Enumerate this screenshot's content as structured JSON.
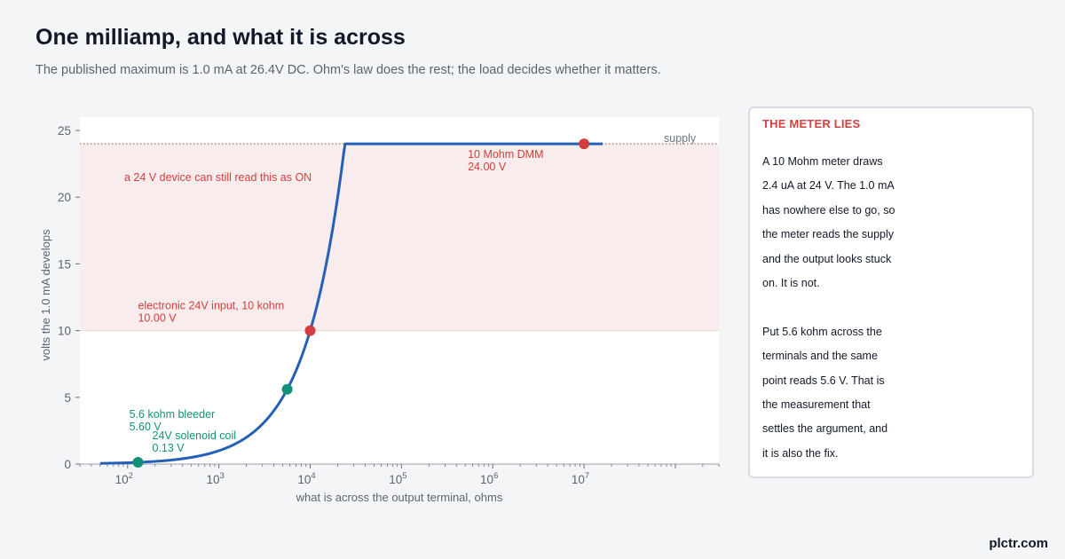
{
  "header": {
    "title": "One milliamp, and what it is across",
    "subtitle": "The published maximum is 1.0 mA at 26.4V DC. Ohm's law does the rest; the load decides whether it matters."
  },
  "chart_data": {
    "type": "line",
    "xlabel": "what is across the output terminal, ohms",
    "ylabel": "volts the 1.0 mA develops",
    "xscale": "log",
    "xlim": [
      30,
      300000000
    ],
    "ylim": [
      0,
      26
    ],
    "y_ticks": [
      0,
      5,
      10,
      15,
      20,
      25
    ],
    "x_ticks": [
      {
        "value": 100,
        "base": "10",
        "exp": "2"
      },
      {
        "value": 1000,
        "base": "10",
        "exp": "3"
      },
      {
        "value": 10000,
        "base": "10",
        "exp": "4"
      },
      {
        "value": 100000,
        "base": "10",
        "exp": "5"
      },
      {
        "value": 1000000,
        "base": "10",
        "exp": "6"
      },
      {
        "value": 10000000,
        "base": "10",
        "exp": "7"
      }
    ],
    "current_amps": 0.001,
    "supply_volts": 24,
    "curve_x_range": [
      50,
      16000000
    ],
    "on_band": {
      "from": 10,
      "to": 24,
      "label": "a 24 V device can still read this as ON"
    },
    "supply_line": {
      "value": 24,
      "label": "supply"
    },
    "points": [
      {
        "name": "24V solenoid coil",
        "ohms": 130,
        "volts": 0.13,
        "color": "#12917a",
        "label": "24V solenoid coil",
        "value_label": "0.13 V"
      },
      {
        "name": "5.6 kohm bleeder",
        "ohms": 5600,
        "volts": 5.6,
        "color": "#12917a",
        "label": "5.6 kohm bleeder",
        "value_label": "5.60 V"
      },
      {
        "name": "electronic 24V input, 10 kohm",
        "ohms": 10000,
        "volts": 10.0,
        "color": "#d43d3d",
        "label": "electronic 24V input, 10 kohm",
        "value_label": "10.00 V"
      },
      {
        "name": "10 Mohm DMM",
        "ohms": 10000000,
        "volts": 24.0,
        "color": "#d43d3d",
        "label": "10 Mohm DMM",
        "value_label": "24.00 V"
      }
    ],
    "colors": {
      "line": "#2460b8",
      "band": "#f9ecec",
      "supply": "#b85a5a",
      "axis_text": "#5b6472",
      "red": "#d43d3d",
      "green": "#12917a"
    },
    "grid": false
  },
  "sidebar": {
    "title": "THE METER LIES",
    "para1_lines": [
      "A 10 Mohm meter draws",
      "2.4 uA at 24 V. The 1.0 mA",
      "has nowhere else to go, so",
      "the meter reads the supply",
      "and the output looks stuck",
      "on. It is not."
    ],
    "para2_lines": [
      "Put 5.6 kohm across the",
      "terminals and the same",
      "point reads 5.6 V. That is",
      "the measurement that",
      "settles the argument, and",
      "it is also the fix."
    ]
  },
  "brand": "plctr.com"
}
